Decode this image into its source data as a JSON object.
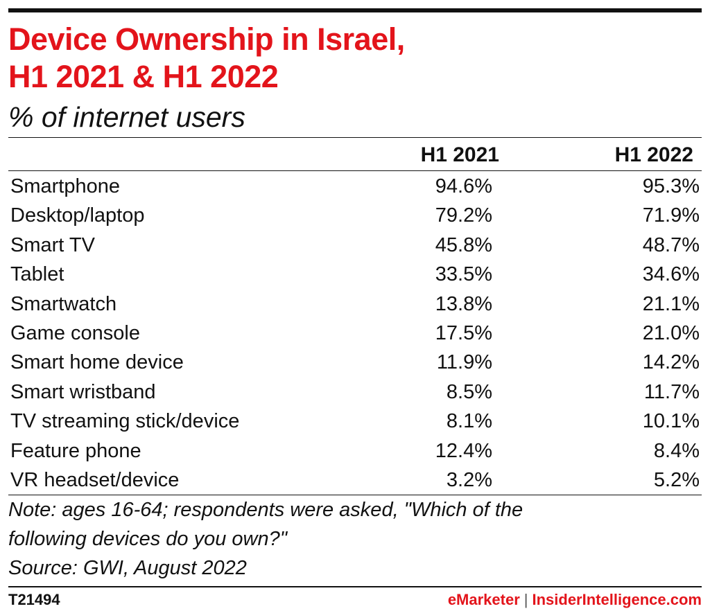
{
  "chart_data": {
    "type": "table",
    "title_lines": [
      "Device Ownership in Israel,",
      "H1 2021 & H1 2022"
    ],
    "subtitle": "% of internet users",
    "columns": [
      "H1 2021",
      "H1 2022"
    ],
    "rows": [
      {
        "label": "Smartphone",
        "values": [
          "94.6%",
          "95.3%"
        ]
      },
      {
        "label": "Desktop/laptop",
        "values": [
          "79.2%",
          "71.9%"
        ]
      },
      {
        "label": "Smart TV",
        "values": [
          "45.8%",
          "48.7%"
        ]
      },
      {
        "label": "Tablet",
        "values": [
          "33.5%",
          "34.6%"
        ]
      },
      {
        "label": "Smartwatch",
        "values": [
          "13.8%",
          "21.1%"
        ]
      },
      {
        "label": "Game console",
        "values": [
          "17.5%",
          "21.0%"
        ]
      },
      {
        "label": "Smart home device",
        "values": [
          "11.9%",
          "14.2%"
        ]
      },
      {
        "label": "Smart wristband",
        "values": [
          "8.5%",
          "11.7%"
        ]
      },
      {
        "label": "TV streaming stick/device",
        "values": [
          "8.1%",
          "10.1%"
        ]
      },
      {
        "label": "Feature phone",
        "values": [
          "12.4%",
          "8.4%"
        ]
      },
      {
        "label": "VR headset/device",
        "values": [
          "3.2%",
          "5.2%"
        ]
      }
    ],
    "note_lines": [
      "Note: ages 16-64; respondents were asked, \"Which of the",
      "following devices do you own?\"",
      "Source: GWI, August 2022"
    ]
  },
  "footer": {
    "chart_id": "T21494",
    "brand_primary": "eMarketer",
    "separator": "|",
    "brand_secondary": "InsiderIntelligence.com"
  },
  "colors": {
    "title": "#e3141b",
    "text": "#111111",
    "rule": "#111111"
  }
}
